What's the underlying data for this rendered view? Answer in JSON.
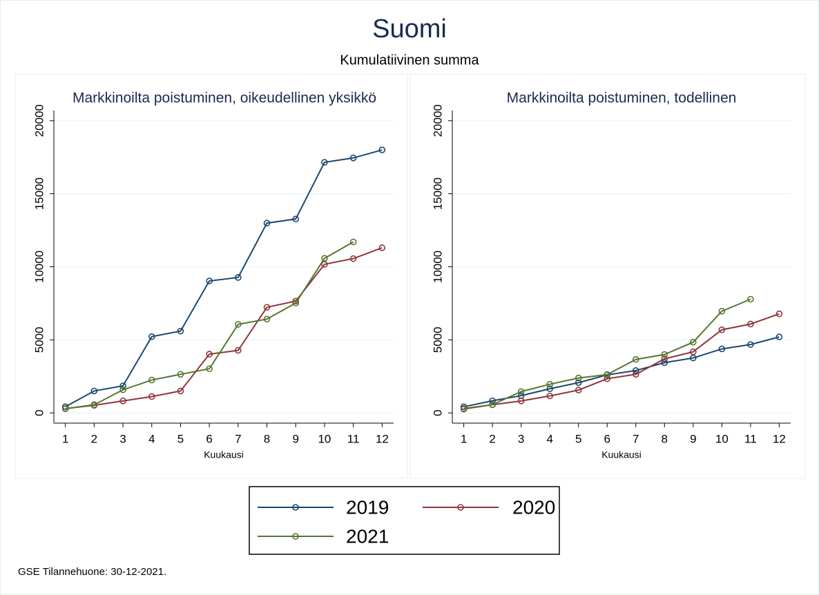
{
  "title": "Suomi",
  "subtitle": "Kumulatiivinen summa",
  "note": "GSE Tilannehuone: 30-12-2021.",
  "chart_data": [
    {
      "type": "line",
      "title": "Markkinoilta poistuminen, oikeudellinen yksikkö",
      "x_label": "Kuukausi",
      "x": [
        1,
        2,
        3,
        4,
        5,
        6,
        7,
        8,
        9,
        10,
        11,
        12
      ],
      "xlim": [
        0.6,
        12.4
      ],
      "xticks": [
        1,
        2,
        3,
        4,
        5,
        6,
        7,
        8,
        9,
        10,
        11,
        12
      ],
      "ylim": [
        -700,
        20700
      ],
      "yticks": [
        0,
        5000,
        10000,
        15000,
        20000
      ],
      "grid": true,
      "series": [
        {
          "name": "2019",
          "color": "#1a476f",
          "values": [
            420,
            1500,
            1850,
            5220,
            5600,
            9030,
            9270,
            12990,
            13270,
            17150,
            17450,
            18000
          ]
        },
        {
          "name": "2020",
          "color": "#90353b",
          "values": [
            300,
            520,
            820,
            1120,
            1500,
            4020,
            4280,
            7230,
            7650,
            10170,
            10560,
            11300
          ]
        },
        {
          "name": "2021",
          "color": "#55752f",
          "values": [
            280,
            560,
            1580,
            2250,
            2640,
            3020,
            6060,
            6420,
            7520,
            10580,
            11700,
            null
          ]
        }
      ]
    },
    {
      "type": "line",
      "title": "Markkinoilta poistuminen, todellinen",
      "x_label": "Kuukausi",
      "x": [
        1,
        2,
        3,
        4,
        5,
        6,
        7,
        8,
        9,
        10,
        11,
        12
      ],
      "xlim": [
        0.6,
        12.4
      ],
      "xticks": [
        1,
        2,
        3,
        4,
        5,
        6,
        7,
        8,
        9,
        10,
        11,
        12
      ],
      "ylim": [
        -700,
        20700
      ],
      "yticks": [
        0,
        5000,
        10000,
        15000,
        20000
      ],
      "grid": true,
      "series": [
        {
          "name": "2019",
          "color": "#1a476f",
          "values": [
            420,
            830,
            1180,
            1650,
            2070,
            2600,
            2900,
            3440,
            3760,
            4380,
            4680,
            5200
          ]
        },
        {
          "name": "2020",
          "color": "#90353b",
          "values": [
            300,
            560,
            820,
            1160,
            1560,
            2340,
            2640,
            3700,
            4180,
            5690,
            6080,
            6780
          ]
        },
        {
          "name": "2021",
          "color": "#55752f",
          "values": [
            260,
            560,
            1460,
            1960,
            2390,
            2620,
            3660,
            4000,
            4840,
            6960,
            7780,
            null
          ]
        }
      ]
    }
  ]
}
